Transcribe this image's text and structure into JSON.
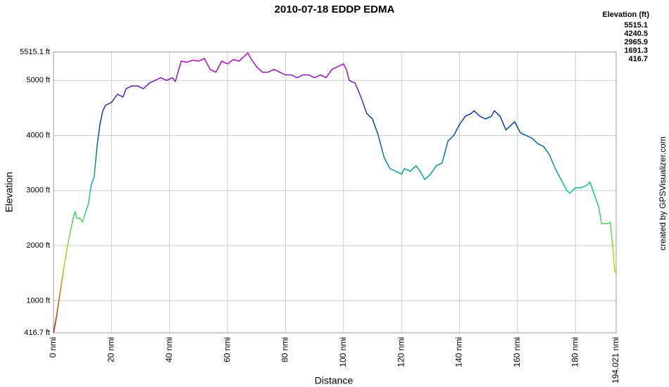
{
  "chart_data": {
    "type": "line",
    "title": "2010-07-18 EDDP EDMA",
    "xlabel": "Distance",
    "ylabel": "Elevation",
    "credit": "created by GPSVisualizer.com",
    "grid": true,
    "xlim": [
      0,
      194.021
    ],
    "ylim": [
      416.7,
      5515.1
    ],
    "xticks": [
      {
        "value": 0,
        "label": "0 nmi"
      },
      {
        "value": 20,
        "label": "20 nmi"
      },
      {
        "value": 40,
        "label": "40 nmi"
      },
      {
        "value": 60,
        "label": "60 nmi"
      },
      {
        "value": 80,
        "label": "80 nmi"
      },
      {
        "value": 100,
        "label": "100 nmi"
      },
      {
        "value": 120,
        "label": "120 nmi"
      },
      {
        "value": 140,
        "label": "140 nmi"
      },
      {
        "value": 160,
        "label": "160 nmi"
      },
      {
        "value": 180,
        "label": "180 nmi"
      },
      {
        "value": 194.021,
        "label": "194.021 nmi"
      }
    ],
    "yticks": [
      {
        "value": 416.7,
        "label": "416.7 ft"
      },
      {
        "value": 1000,
        "label": "1000 ft"
      },
      {
        "value": 2000,
        "label": "2000 ft"
      },
      {
        "value": 3000,
        "label": "3000 ft"
      },
      {
        "value": 4000,
        "label": "4000 ft"
      },
      {
        "value": 5000,
        "label": "5000 ft"
      },
      {
        "value": 5515.1,
        "label": "5515.1 ft"
      }
    ],
    "color_scale": [
      {
        "value": 5515.1,
        "color": "#cc00cc"
      },
      {
        "value": 4240.5,
        "color": "#0040a0"
      },
      {
        "value": 2965.9,
        "color": "#00cc99"
      },
      {
        "value": 1691.3,
        "color": "#bbdd00"
      },
      {
        "value": 416.7,
        "color": "#cc0000"
      }
    ],
    "x": [
      0,
      1,
      2,
      3,
      4,
      5,
      6,
      7,
      7.5,
      8,
      9,
      10,
      11,
      12,
      13,
      14,
      15,
      16,
      17,
      18,
      20,
      22,
      24,
      25,
      27,
      29,
      31,
      33,
      35,
      37,
      39,
      41,
      42,
      44,
      46,
      48,
      50,
      52,
      54,
      56,
      58,
      60,
      62,
      64,
      66,
      67,
      68,
      70,
      72,
      74,
      76,
      78,
      80,
      82,
      84,
      86,
      88,
      90,
      92,
      94,
      96,
      98,
      100,
      101,
      102,
      104,
      106,
      108,
      110,
      112,
      114,
      116,
      118,
      120,
      121,
      123,
      125,
      127,
      128,
      130,
      132,
      134,
      136,
      138,
      140,
      142,
      144,
      145,
      147,
      149,
      151,
      152,
      154,
      156,
      158,
      159,
      161,
      163,
      165,
      167,
      169,
      171,
      173,
      175,
      177,
      178,
      180,
      182,
      184,
      185,
      186,
      188,
      189,
      191,
      192,
      193,
      193.5,
      194.021
    ],
    "series": [
      {
        "name": "Elevation (ft)",
        "values": [
          420,
          700,
          1050,
          1400,
          1750,
          2050,
          2300,
          2550,
          2620,
          2500,
          2500,
          2430,
          2600,
          2750,
          3100,
          3250,
          3800,
          4200,
          4450,
          4550,
          4600,
          4750,
          4700,
          4850,
          4900,
          4900,
          4850,
          4950,
          5000,
          5050,
          5000,
          5050,
          4980,
          5350,
          5330,
          5370,
          5350,
          5400,
          5200,
          5150,
          5350,
          5300,
          5380,
          5350,
          5450,
          5500,
          5400,
          5250,
          5150,
          5150,
          5200,
          5150,
          5100,
          5100,
          5050,
          5100,
          5100,
          5050,
          5100,
          5050,
          5200,
          5250,
          5300,
          5200,
          5000,
          4950,
          4700,
          4400,
          4300,
          4000,
          3600,
          3400,
          3350,
          3300,
          3400,
          3350,
          3450,
          3300,
          3200,
          3300,
          3450,
          3500,
          3900,
          4000,
          4200,
          4350,
          4400,
          4450,
          4350,
          4300,
          4350,
          4450,
          4350,
          4100,
          4200,
          4250,
          4050,
          4000,
          3950,
          3850,
          3800,
          3650,
          3400,
          3200,
          3000,
          2950,
          3050,
          3050,
          3100,
          3150,
          3000,
          2700,
          2400,
          2400,
          2420,
          1900,
          1550,
          1500
        ]
      }
    ]
  }
}
